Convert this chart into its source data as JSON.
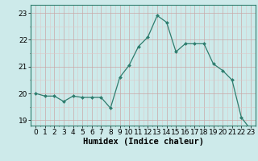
{
  "x": [
    0,
    1,
    2,
    3,
    4,
    5,
    6,
    7,
    8,
    9,
    10,
    11,
    12,
    13,
    14,
    15,
    16,
    17,
    18,
    19,
    20,
    21,
    22,
    23
  ],
  "y": [
    20.0,
    19.9,
    19.9,
    19.7,
    19.9,
    19.85,
    19.85,
    19.85,
    19.45,
    20.6,
    21.05,
    21.75,
    22.1,
    22.9,
    22.65,
    21.55,
    21.85,
    21.85,
    21.85,
    21.1,
    20.85,
    20.5,
    19.1,
    18.65
  ],
  "line_color": "#2e7d6e",
  "marker": "D",
  "markersize": 2.0,
  "bg_color": "#cdeaea",
  "grid_color_major": "#c9a8a8",
  "grid_color_minor": "#ddc8c8",
  "xlabel": "Humidex (Indice chaleur)",
  "ylim": [
    18.8,
    23.3
  ],
  "xlim": [
    -0.5,
    23.5
  ],
  "yticks": [
    19,
    20,
    21,
    22,
    23
  ],
  "xticks": [
    0,
    1,
    2,
    3,
    4,
    5,
    6,
    7,
    8,
    9,
    10,
    11,
    12,
    13,
    14,
    15,
    16,
    17,
    18,
    19,
    20,
    21,
    22,
    23
  ],
  "fontsize": 6.5,
  "xlabel_fontsize": 7.5
}
